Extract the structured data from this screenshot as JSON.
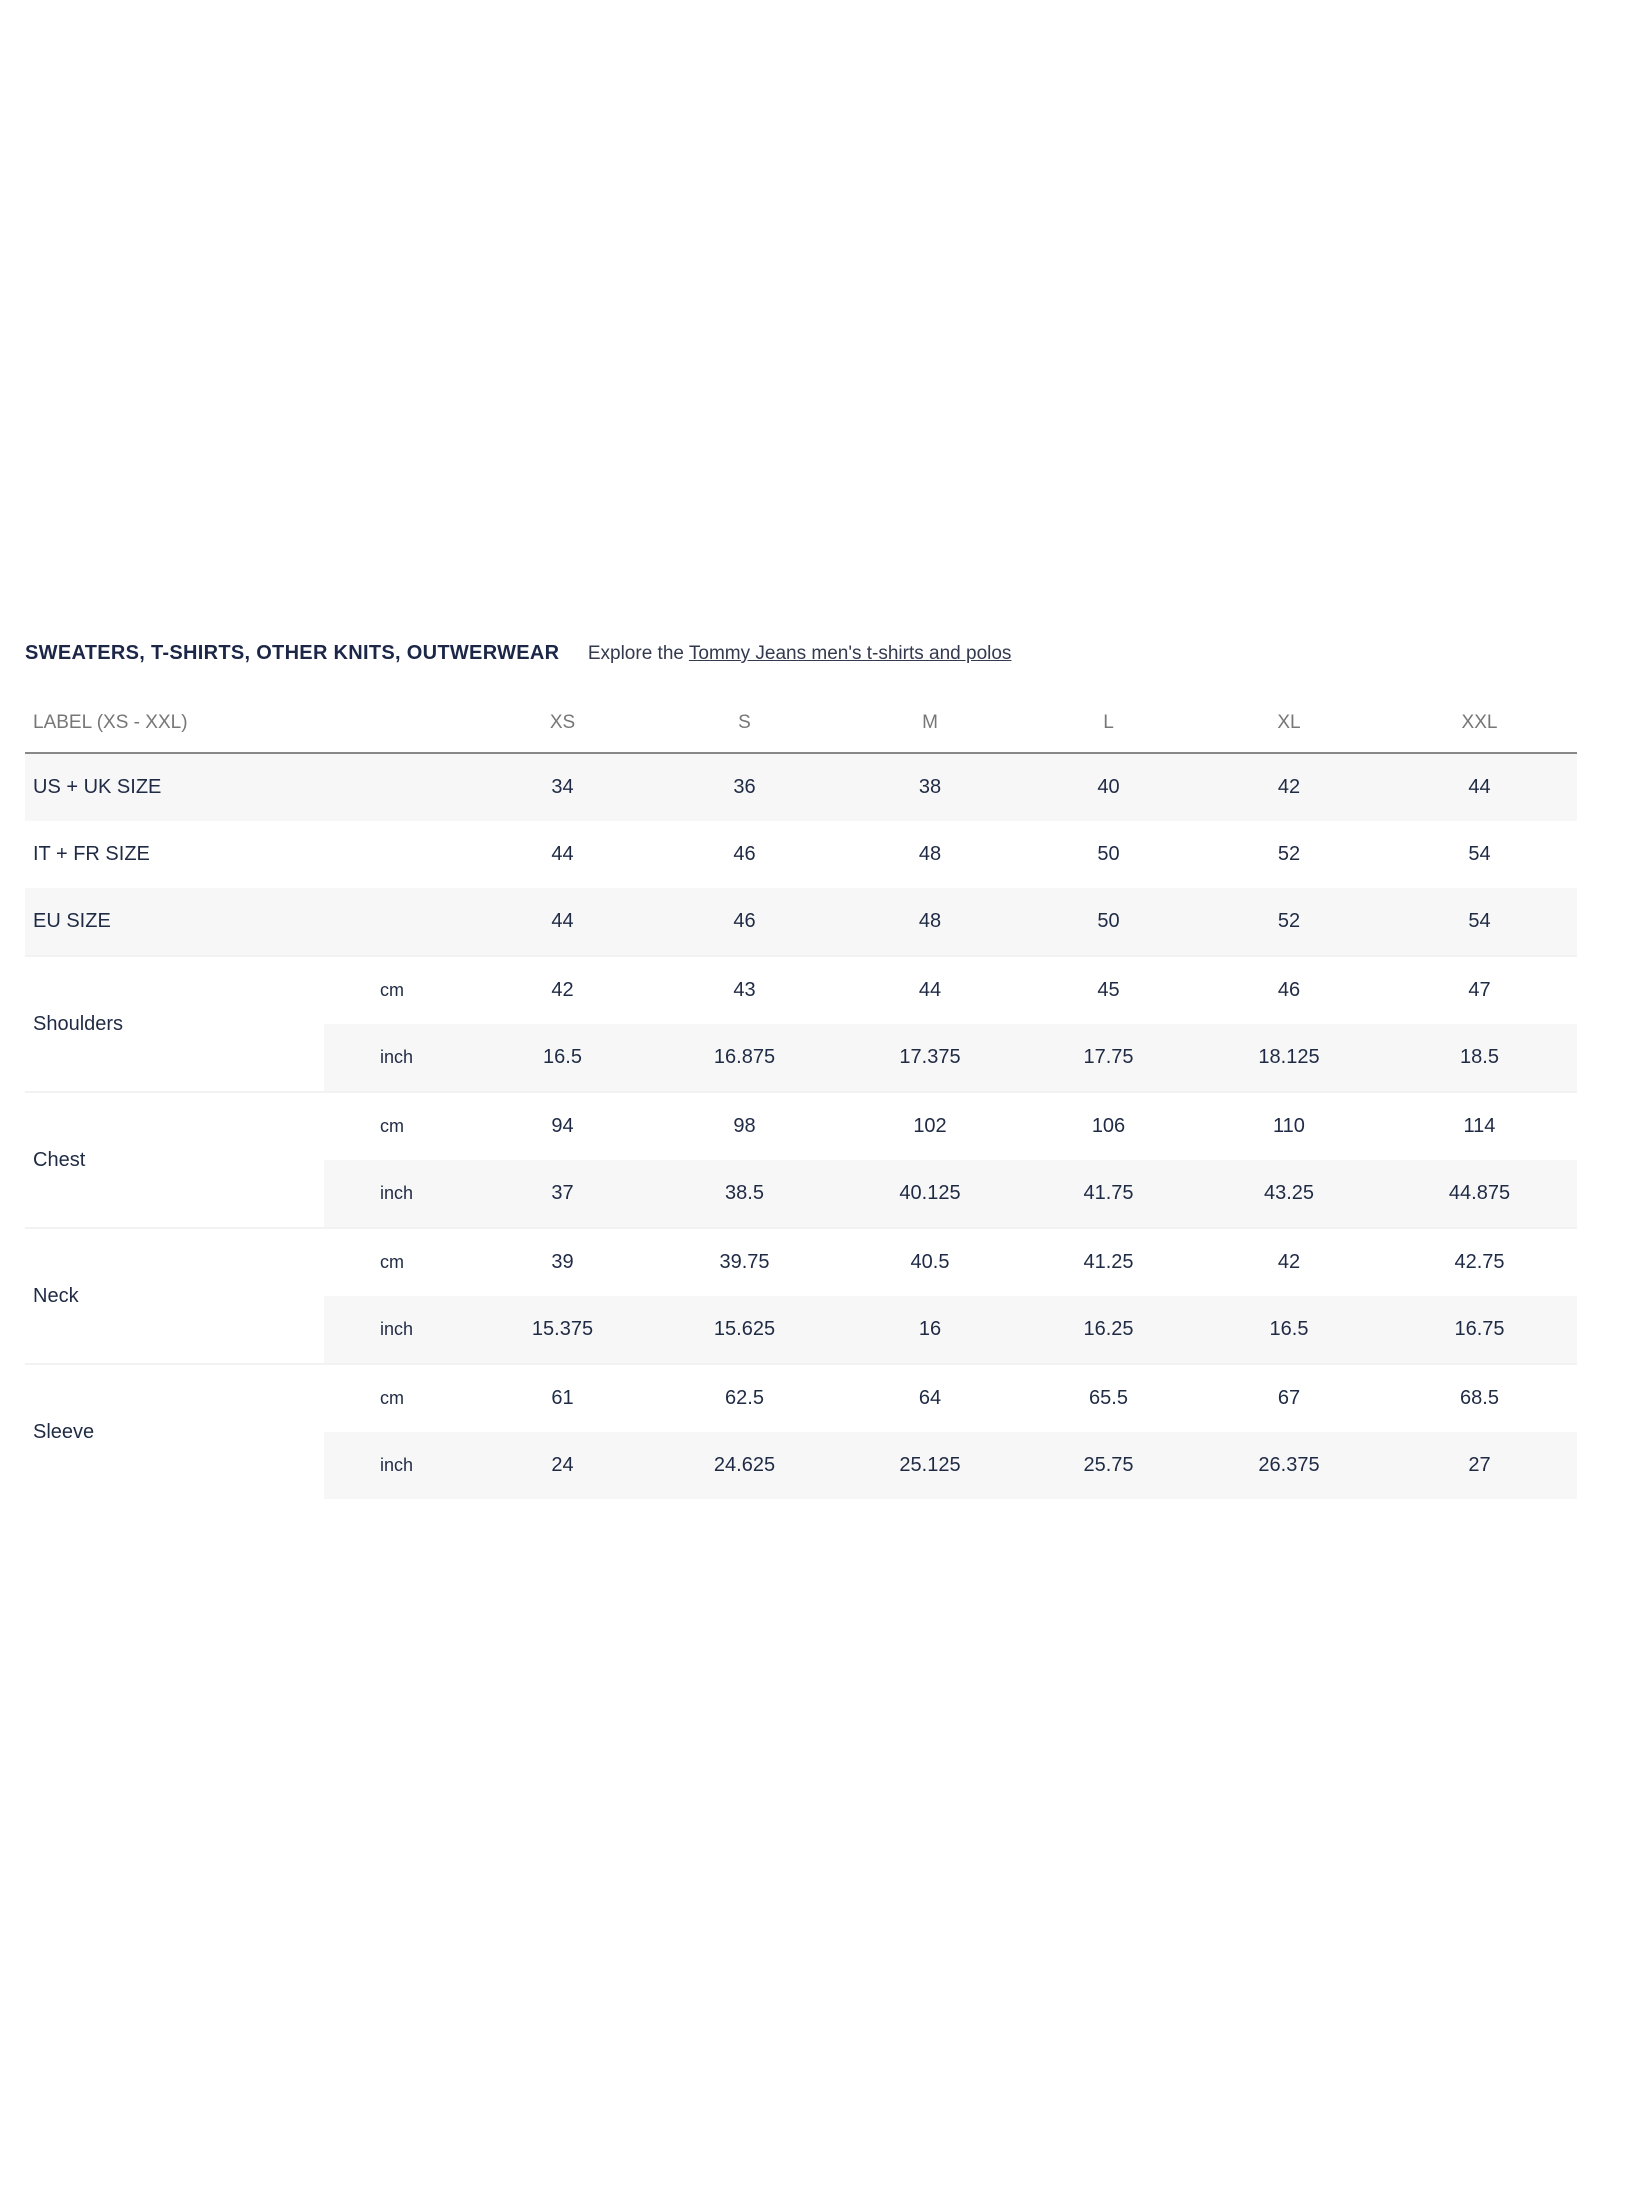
{
  "header": {
    "title": "SWEATERS, T-SHIRTS, OTHER KNITS, OUTWERWEAR",
    "explore_prefix": "Explore the",
    "explore_link": "Tommy Jeans men's t-shirts and polos"
  },
  "table": {
    "label_header": "LABEL (XS - XXL)",
    "sizes": [
      "XS",
      "S",
      "M",
      "L",
      "XL",
      "XXL"
    ],
    "size_rows": [
      {
        "label": "US + UK SIZE",
        "values": [
          "34",
          "36",
          "38",
          "40",
          "42",
          "44"
        ]
      },
      {
        "label": "IT + FR SIZE",
        "values": [
          "44",
          "46",
          "48",
          "50",
          "52",
          "54"
        ]
      },
      {
        "label": "EU SIZE",
        "values": [
          "44",
          "46",
          "48",
          "50",
          "52",
          "54"
        ]
      }
    ],
    "measurements": [
      {
        "label": "Shoulders",
        "cm": [
          "42",
          "43",
          "44",
          "45",
          "46",
          "47"
        ],
        "inch": [
          "16.5",
          "16.875",
          "17.375",
          "17.75",
          "18.125",
          "18.5"
        ]
      },
      {
        "label": "Chest",
        "cm": [
          "94",
          "98",
          "102",
          "106",
          "110",
          "114"
        ],
        "inch": [
          "37",
          "38.5",
          "40.125",
          "41.75",
          "43.25",
          "44.875"
        ]
      },
      {
        "label": "Neck",
        "cm": [
          "39",
          "39.75",
          "40.5",
          "41.25",
          "42",
          "42.75"
        ],
        "inch": [
          "15.375",
          "15.625",
          "16",
          "16.25",
          "16.5",
          "16.75"
        ]
      },
      {
        "label": "Sleeve",
        "cm": [
          "61",
          "62.5",
          "64",
          "65.5",
          "67",
          "68.5"
        ],
        "inch": [
          "24",
          "24.625",
          "25.125",
          "25.75",
          "26.375",
          "27"
        ]
      }
    ],
    "unit_cm": "cm",
    "unit_inch": "inch"
  }
}
